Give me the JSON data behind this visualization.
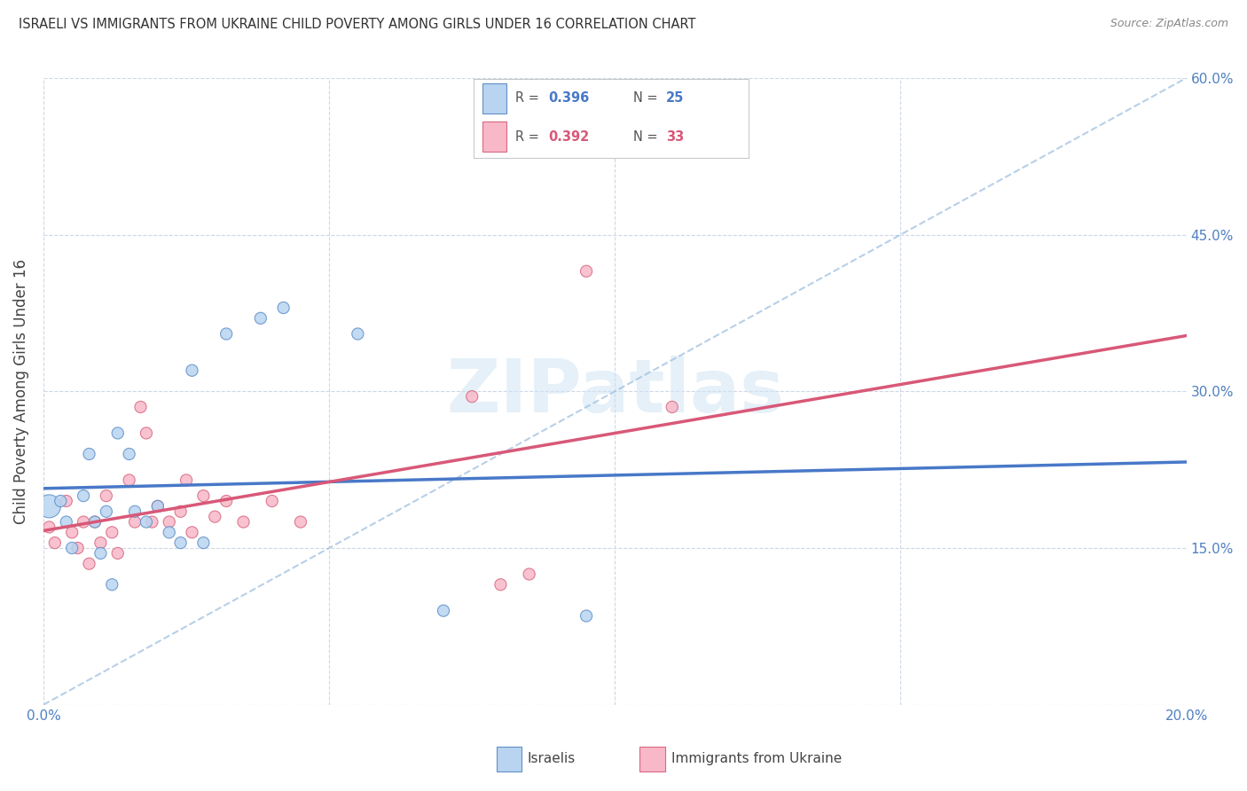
{
  "title": "ISRAELI VS IMMIGRANTS FROM UKRAINE CHILD POVERTY AMONG GIRLS UNDER 16 CORRELATION CHART",
  "source": "Source: ZipAtlas.com",
  "ylabel": "Child Poverty Among Girls Under 16",
  "r1": 0.396,
  "n1": 25,
  "r2": 0.392,
  "n2": 33,
  "color_blue_fill": "#b8d4f0",
  "color_blue_edge": "#6090c8",
  "color_pink_fill": "#f8b8c8",
  "color_pink_edge": "#d86880",
  "color_blue_line": "#4878c8",
  "color_pink_line": "#d85878",
  "color_dashed": "#a0c0e0",
  "color_grid": "#c8d4e4",
  "color_axis_labels": "#5080c0",
  "color_title": "#333333",
  "color_source": "#888888",
  "color_watermark": "#d0e4f4",
  "xlim": [
    0.0,
    0.2
  ],
  "ylim": [
    0.0,
    0.6
  ],
  "israeli_x": [
    0.001,
    0.003,
    0.004,
    0.005,
    0.007,
    0.008,
    0.009,
    0.01,
    0.011,
    0.012,
    0.013,
    0.015,
    0.016,
    0.018,
    0.02,
    0.022,
    0.024,
    0.026,
    0.028,
    0.032,
    0.038,
    0.042,
    0.055,
    0.07,
    0.095
  ],
  "israeli_y": [
    0.19,
    0.195,
    0.175,
    0.15,
    0.2,
    0.24,
    0.175,
    0.145,
    0.185,
    0.115,
    0.26,
    0.24,
    0.185,
    0.175,
    0.19,
    0.165,
    0.155,
    0.32,
    0.155,
    0.355,
    0.37,
    0.38,
    0.355,
    0.09,
    0.085
  ],
  "israeli_sizes": [
    350,
    90,
    90,
    90,
    90,
    90,
    90,
    90,
    90,
    90,
    90,
    90,
    90,
    90,
    90,
    90,
    90,
    90,
    90,
    90,
    90,
    90,
    90,
    90,
    90
  ],
  "ukraine_x": [
    0.001,
    0.002,
    0.004,
    0.005,
    0.006,
    0.007,
    0.008,
    0.009,
    0.01,
    0.011,
    0.012,
    0.013,
    0.015,
    0.016,
    0.017,
    0.018,
    0.019,
    0.02,
    0.022,
    0.024,
    0.025,
    0.026,
    0.028,
    0.03,
    0.032,
    0.035,
    0.04,
    0.045,
    0.075,
    0.08,
    0.085,
    0.095,
    0.11
  ],
  "ukraine_y": [
    0.17,
    0.155,
    0.195,
    0.165,
    0.15,
    0.175,
    0.135,
    0.175,
    0.155,
    0.2,
    0.165,
    0.145,
    0.215,
    0.175,
    0.285,
    0.26,
    0.175,
    0.19,
    0.175,
    0.185,
    0.215,
    0.165,
    0.2,
    0.18,
    0.195,
    0.175,
    0.195,
    0.175,
    0.295,
    0.115,
    0.125,
    0.415,
    0.285
  ],
  "ukraine_sizes": [
    90,
    90,
    90,
    90,
    90,
    90,
    90,
    90,
    90,
    90,
    90,
    90,
    90,
    90,
    90,
    90,
    90,
    90,
    90,
    90,
    90,
    90,
    90,
    90,
    90,
    90,
    90,
    90,
    90,
    90,
    90,
    90,
    90
  ],
  "legend_label_1": "Israelis",
  "legend_label_2": "Immigrants from Ukraine",
  "watermark": "ZIPatlas"
}
